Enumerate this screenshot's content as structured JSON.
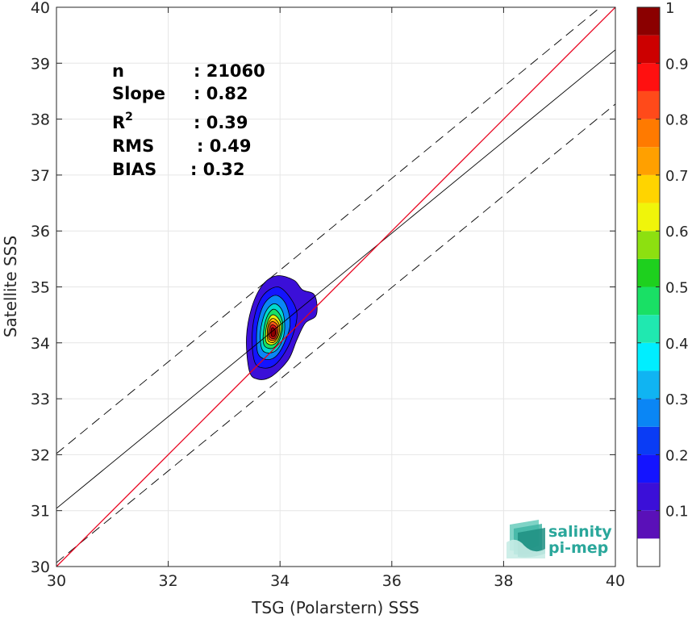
{
  "chart_data": {
    "type": "scatter-density-contour",
    "xlabel": "TSG (Polarstern) SSS",
    "ylabel": "Satellite SSS",
    "xlim": [
      30,
      40
    ],
    "ylim": [
      30,
      40
    ],
    "xticks": [
      "30",
      "32",
      "34",
      "36",
      "38",
      "40"
    ],
    "yticks": [
      "30",
      "31",
      "32",
      "33",
      "34",
      "35",
      "36",
      "37",
      "38",
      "39",
      "40"
    ],
    "grid": true,
    "stats": [
      {
        "label": "n",
        "value": ": 21060"
      },
      {
        "label": "Slope",
        "value": ": 0.82"
      },
      {
        "label": "R",
        "sup": "2",
        "value": ": 0.39"
      },
      {
        "label": "RMS",
        "value": ": 0.49"
      },
      {
        "label": "BIAS",
        "value": ": 0.32"
      }
    ],
    "lines": {
      "identity": {
        "color": "#e8001c",
        "points": [
          [
            30,
            30
          ],
          [
            40,
            40
          ]
        ]
      },
      "regression": {
        "color": "#000000",
        "points": [
          [
            30,
            31.04
          ],
          [
            40,
            39.24
          ]
        ]
      },
      "upper_bound": {
        "color": "#000000",
        "dashed": true,
        "points": [
          [
            30,
            32.02
          ],
          [
            40,
            40.22
          ]
        ]
      },
      "lower_bound": {
        "color": "#000000",
        "dashed": true,
        "points": [
          [
            30,
            30.07
          ],
          [
            40,
            38.27
          ]
        ]
      }
    },
    "density_center": [
      33.9,
      34.2
    ],
    "contour_levels": [
      0.05,
      0.1,
      0.15,
      0.2,
      0.25,
      0.3,
      0.35,
      0.4,
      0.45,
      0.5,
      0.55,
      0.6,
      0.65,
      0.7,
      0.75,
      0.8,
      0.85,
      0.9,
      0.95,
      1.0
    ],
    "contours": [
      {
        "level": 0.05,
        "color": "#3b0fd8",
        "points": [
          [
            33.45,
            33.5
          ],
          [
            33.6,
            33.35
          ],
          [
            33.85,
            33.4
          ],
          [
            34.15,
            33.7
          ],
          [
            34.3,
            34.05
          ],
          [
            34.45,
            34.35
          ],
          [
            34.65,
            34.5
          ],
          [
            34.62,
            34.85
          ],
          [
            34.4,
            34.95
          ],
          [
            34.25,
            35.12
          ],
          [
            33.95,
            35.2
          ],
          [
            33.7,
            35.05
          ],
          [
            33.5,
            34.65
          ],
          [
            33.4,
            34.1
          ]
        ]
      },
      {
        "level": 0.2,
        "color": "#1414ff",
        "points": [
          [
            33.55,
            33.65
          ],
          [
            33.7,
            33.55
          ],
          [
            33.9,
            33.6
          ],
          [
            34.1,
            33.85
          ],
          [
            34.25,
            34.2
          ],
          [
            34.3,
            34.55
          ],
          [
            34.15,
            34.85
          ],
          [
            33.95,
            35.0
          ],
          [
            33.7,
            34.85
          ],
          [
            33.55,
            34.5
          ],
          [
            33.5,
            34.05
          ]
        ]
      },
      {
        "level": 0.3,
        "color": "#0a86f5",
        "points": [
          [
            33.62,
            33.78
          ],
          [
            33.78,
            33.7
          ],
          [
            33.95,
            33.78
          ],
          [
            34.1,
            34.05
          ],
          [
            34.18,
            34.35
          ],
          [
            34.1,
            34.7
          ],
          [
            33.92,
            34.85
          ],
          [
            33.72,
            34.7
          ],
          [
            33.6,
            34.35
          ],
          [
            33.58,
            34.0
          ]
        ]
      },
      {
        "level": 0.4,
        "color": "#00d9d0",
        "points": [
          [
            33.68,
            33.88
          ],
          [
            33.83,
            33.82
          ],
          [
            33.98,
            33.92
          ],
          [
            34.08,
            34.2
          ],
          [
            34.05,
            34.55
          ],
          [
            33.9,
            34.7
          ],
          [
            33.74,
            34.55
          ],
          [
            33.65,
            34.2
          ]
        ]
      },
      {
        "level": 0.5,
        "color": "#19e065",
        "points": [
          [
            33.72,
            33.95
          ],
          [
            33.86,
            33.9
          ],
          [
            33.98,
            34.02
          ],
          [
            34.05,
            34.28
          ],
          [
            34.0,
            34.5
          ],
          [
            33.88,
            34.6
          ],
          [
            33.76,
            34.45
          ],
          [
            33.7,
            34.15
          ]
        ]
      },
      {
        "level": 0.6,
        "color": "#e8f20f",
        "points": [
          [
            33.76,
            34.0
          ],
          [
            33.88,
            33.97
          ],
          [
            33.98,
            34.08
          ],
          [
            34.02,
            34.3
          ],
          [
            33.96,
            34.45
          ],
          [
            33.86,
            34.5
          ],
          [
            33.78,
            34.38
          ],
          [
            33.74,
            34.15
          ]
        ]
      },
      {
        "level": 0.7,
        "color": "#ffb400",
        "points": [
          [
            33.79,
            34.03
          ],
          [
            33.89,
            34.01
          ],
          [
            33.97,
            34.12
          ],
          [
            33.99,
            34.3
          ],
          [
            33.93,
            34.41
          ],
          [
            33.85,
            34.43
          ],
          [
            33.79,
            34.33
          ],
          [
            33.77,
            34.15
          ]
        ]
      },
      {
        "level": 0.8,
        "color": "#ff5a1a",
        "points": [
          [
            33.81,
            34.06
          ],
          [
            33.9,
            34.05
          ],
          [
            33.96,
            34.15
          ],
          [
            33.96,
            34.3
          ],
          [
            33.9,
            34.37
          ],
          [
            33.84,
            34.37
          ],
          [
            33.8,
            34.28
          ],
          [
            33.79,
            34.15
          ]
        ]
      },
      {
        "level": 0.9,
        "color": "#e01010",
        "points": [
          [
            33.83,
            34.09
          ],
          [
            33.9,
            34.08
          ],
          [
            33.94,
            34.17
          ],
          [
            33.93,
            34.28
          ],
          [
            33.88,
            34.32
          ],
          [
            33.84,
            34.31
          ],
          [
            33.82,
            34.24
          ],
          [
            33.81,
            34.15
          ]
        ]
      },
      {
        "level": 1.0,
        "color": "#8b0000",
        "points": [
          [
            33.85,
            34.12
          ],
          [
            33.9,
            34.12
          ],
          [
            33.92,
            34.19
          ],
          [
            33.9,
            34.25
          ],
          [
            33.86,
            34.27
          ],
          [
            33.84,
            34.21
          ]
        ]
      }
    ],
    "colorbar": {
      "ticks": [
        "0.1",
        "0.2",
        "0.3",
        "0.4",
        "0.5",
        "0.6",
        "0.7",
        "0.8",
        "0.9",
        "1"
      ],
      "tick_values": [
        0.1,
        0.2,
        0.3,
        0.4,
        0.5,
        0.6,
        0.7,
        0.8,
        0.9,
        1.0
      ],
      "bands": [
        {
          "from": 0.0,
          "to": 0.05,
          "color": "#ffffff"
        },
        {
          "from": 0.05,
          "to": 0.1,
          "color": "#5a10b8"
        },
        {
          "from": 0.1,
          "to": 0.15,
          "color": "#3b0fd8"
        },
        {
          "from": 0.15,
          "to": 0.2,
          "color": "#1414ff"
        },
        {
          "from": 0.2,
          "to": 0.25,
          "color": "#0a3cf5"
        },
        {
          "from": 0.25,
          "to": 0.3,
          "color": "#0a86f5"
        },
        {
          "from": 0.3,
          "to": 0.35,
          "color": "#10b4f2"
        },
        {
          "from": 0.35,
          "to": 0.4,
          "color": "#00eeff"
        },
        {
          "from": 0.4,
          "to": 0.45,
          "color": "#20e8b0"
        },
        {
          "from": 0.45,
          "to": 0.5,
          "color": "#19e065"
        },
        {
          "from": 0.5,
          "to": 0.55,
          "color": "#1ed01e"
        },
        {
          "from": 0.55,
          "to": 0.6,
          "color": "#8de010"
        },
        {
          "from": 0.6,
          "to": 0.65,
          "color": "#f0f50a"
        },
        {
          "from": 0.65,
          "to": 0.7,
          "color": "#ffd400"
        },
        {
          "from": 0.7,
          "to": 0.75,
          "color": "#ffa000"
        },
        {
          "from": 0.75,
          "to": 0.8,
          "color": "#ff7a00"
        },
        {
          "from": 0.8,
          "to": 0.85,
          "color": "#ff4a1a"
        },
        {
          "from": 0.85,
          "to": 0.9,
          "color": "#ff1010"
        },
        {
          "from": 0.9,
          "to": 0.95,
          "color": "#cc0000"
        },
        {
          "from": 0.95,
          "to": 1.0,
          "color": "#8b0000"
        }
      ]
    }
  },
  "logo": {
    "line1": "salinity",
    "line2": "pi-mep",
    "color": "#2aa79b"
  }
}
